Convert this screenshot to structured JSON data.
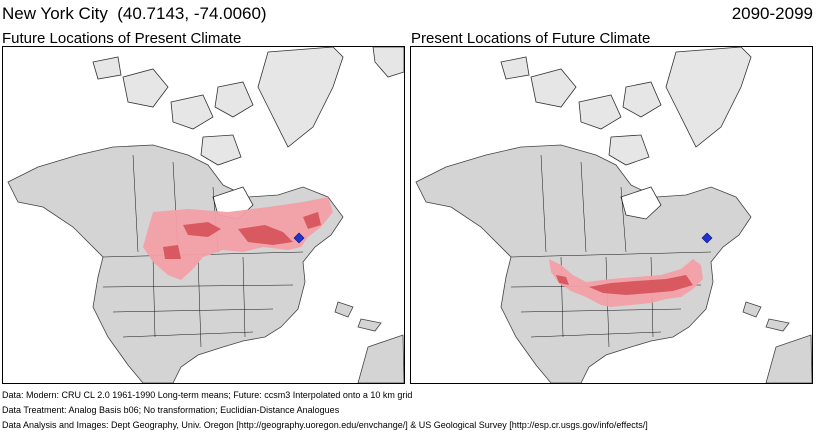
{
  "header": {
    "location": "New York City  (40.7143, -74.0060)",
    "period": "2090-2099"
  },
  "panels": [
    {
      "title": "Future Locations of Present Climate"
    },
    {
      "title": "Present Locations of Future Climate"
    }
  ],
  "colors": {
    "land": "#d4d4d4",
    "water": "#ffffff",
    "analog_light": "#f2a0a6",
    "analog_dark": "#d85a60",
    "target_marker": "#2233cc",
    "borders": "#000000"
  },
  "footer": {
    "data_line": "Data:  Modern: CRU CL 2.0 1961-1990 Long-term means; Future: ccsm3 Interpolated onto a 10 km grid",
    "treatment_line": "Data Treatment:  Analog Basis b06; No transformation; Euclidian-Distance Analogues",
    "analysis_line": "Data Analysis and Images:  Dept Geography, Univ. Oregon [http://geography.uoregon.edu/envchange/] & US Geological Survey [http://esp.cr.usgs.gov/info/effects/]"
  }
}
